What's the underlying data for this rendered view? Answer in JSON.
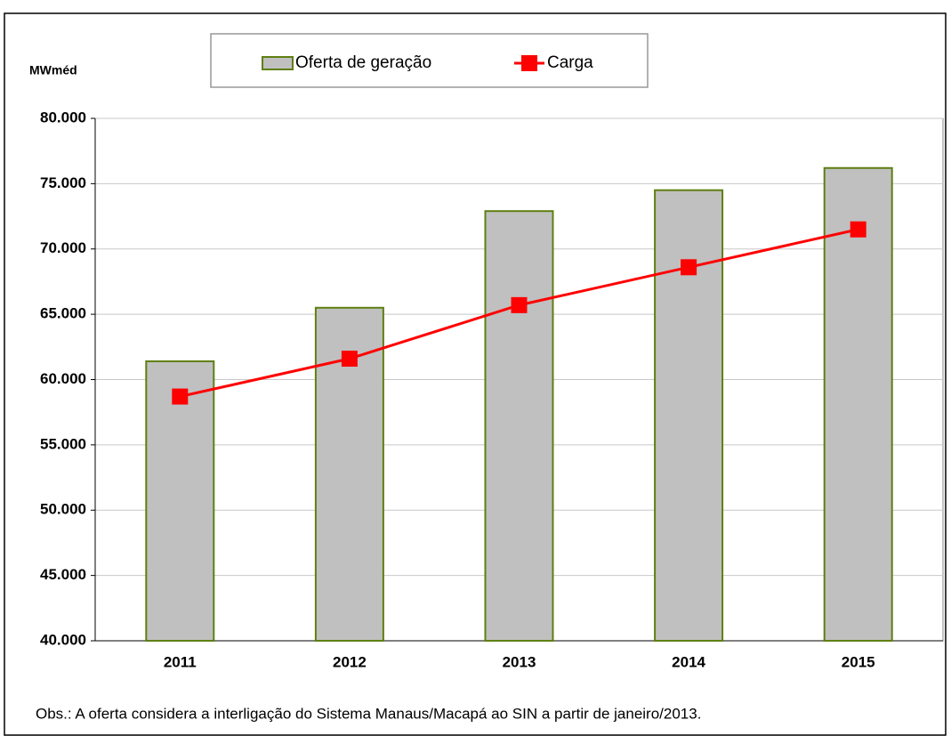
{
  "chart_data": {
    "type": "bar",
    "y_label": "MWméd",
    "note": "Obs.: A oferta considera a interligação do Sistema Manaus/Macapá ao SIN a partir de janeiro/2013.",
    "categories": [
      "2011",
      "2012",
      "2013",
      "2014",
      "2015"
    ],
    "series": [
      {
        "name": "Oferta de geração",
        "type": "bar",
        "color": "#c0c0c0",
        "edge_color": "#5f7f12",
        "values": [
          61400,
          65500,
          72900,
          74500,
          76200
        ]
      },
      {
        "name": "Carga",
        "type": "line",
        "color": "#ff0000",
        "values": [
          58700,
          61600,
          65700,
          68600,
          71500
        ]
      }
    ],
    "ylim": [
      40000,
      80000
    ],
    "yticks": [
      {
        "value": 40000,
        "label": "40.000"
      },
      {
        "value": 45000,
        "label": "45.000"
      },
      {
        "value": 50000,
        "label": "50.000"
      },
      {
        "value": 55000,
        "label": "55.000"
      },
      {
        "value": 60000,
        "label": "60.000"
      },
      {
        "value": 65000,
        "label": "65.000"
      },
      {
        "value": 70000,
        "label": "70.000"
      },
      {
        "value": 75000,
        "label": "75.000"
      },
      {
        "value": 80000,
        "label": "80.000"
      }
    ],
    "grid": true
  }
}
